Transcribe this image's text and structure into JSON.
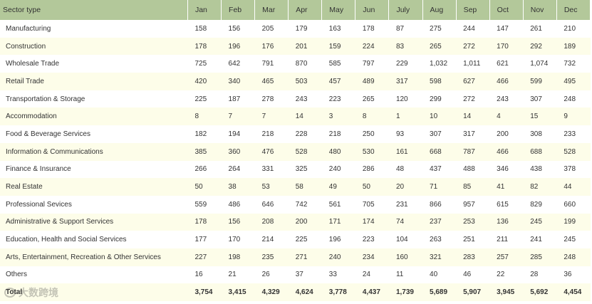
{
  "header": {
    "sector_label": "Sector type",
    "months": [
      "Jan",
      "Feb",
      "Mar",
      "Apr",
      "May",
      "Jun",
      "July",
      "Aug",
      "Sep",
      "Oct",
      "Nov",
      "Dec"
    ]
  },
  "rows": [
    {
      "sector": "Manufacturing",
      "values": [
        "158",
        "156",
        "205",
        "179",
        "163",
        "178",
        "87",
        "275",
        "244",
        "147",
        "261",
        "210"
      ]
    },
    {
      "sector": "Construction",
      "values": [
        "178",
        "196",
        "176",
        "201",
        "159",
        "224",
        "83",
        "265",
        "272",
        "170",
        "292",
        "189"
      ]
    },
    {
      "sector": "Wholesale Trade",
      "values": [
        "725",
        "642",
        "791",
        "870",
        "585",
        "797",
        "229",
        "1,032",
        "1,011",
        "621",
        "1,074",
        "732"
      ]
    },
    {
      "sector": "Retail Trade",
      "values": [
        "420",
        "340",
        "465",
        "503",
        "457",
        "489",
        "317",
        "598",
        "627",
        "466",
        "599",
        "495"
      ]
    },
    {
      "sector": "Transportation & Storage",
      "values": [
        "225",
        "187",
        "278",
        "243",
        "223",
        "265",
        "120",
        "299",
        "272",
        "243",
        "307",
        "248"
      ]
    },
    {
      "sector": " Accommodation",
      "values": [
        "8",
        "7",
        "7",
        "14",
        "3",
        "8",
        "1",
        "10",
        "14",
        "4",
        "15",
        "9"
      ]
    },
    {
      "sector": "Food & Beverage Services",
      "values": [
        "182",
        "194",
        "218",
        "228",
        "218",
        "250",
        "93",
        "307",
        "317",
        "200",
        "308",
        "233"
      ]
    },
    {
      "sector": "Information & Communications",
      "values": [
        "385",
        "360",
        "476",
        "528",
        "480",
        "530",
        "161",
        "668",
        "787",
        "466",
        "688",
        "528"
      ]
    },
    {
      "sector": "Finance & Insurance",
      "values": [
        "266",
        "264",
        "331",
        "325",
        "240",
        "286",
        "48",
        "437",
        "488",
        "346",
        "438",
        "378"
      ]
    },
    {
      "sector": "Real Estate",
      "values": [
        "50",
        "38",
        "53",
        "58",
        "49",
        "50",
        "20",
        "71",
        "85",
        "41",
        "82",
        "44"
      ]
    },
    {
      "sector": "Professional Sevices",
      "values": [
        "559",
        "486",
        "646",
        "742",
        "561",
        "705",
        "231",
        "866",
        "957",
        "615",
        "829",
        "660"
      ]
    },
    {
      "sector": "Administrative & Support Services",
      "values": [
        "178",
        "156",
        "208",
        "200",
        "171",
        "174",
        "74",
        "237",
        "253",
        "136",
        "245",
        "199"
      ]
    },
    {
      "sector": "Education, Health and Social Services",
      "values": [
        "177",
        "170",
        "214",
        "225",
        "196",
        "223",
        "104",
        "263",
        "251",
        "211",
        "241",
        "245"
      ]
    },
    {
      "sector": "Arts, Entertainment, Recreation & Other Services",
      "values": [
        "227",
        "198",
        "235",
        "271",
        "240",
        "234",
        "160",
        "321",
        "283",
        "257",
        "285",
        "248"
      ]
    },
    {
      "sector": "Others",
      "values": [
        "16",
        "21",
        "26",
        "37",
        "33",
        "24",
        "11",
        "40",
        "46",
        "22",
        "28",
        "36"
      ]
    }
  ],
  "total": {
    "label": "Total",
    "values": [
      "3,754",
      "3,415",
      "4,329",
      "4,624",
      "3,778",
      "4,437",
      "1,739",
      "5,689",
      "5,907",
      "3,945",
      "5,692",
      "4,454"
    ]
  },
  "watermark": {
    "text": "大数跨境"
  },
  "colors": {
    "header_bg": "#b3c89a",
    "row_alt_bg": "#fdfde9"
  }
}
